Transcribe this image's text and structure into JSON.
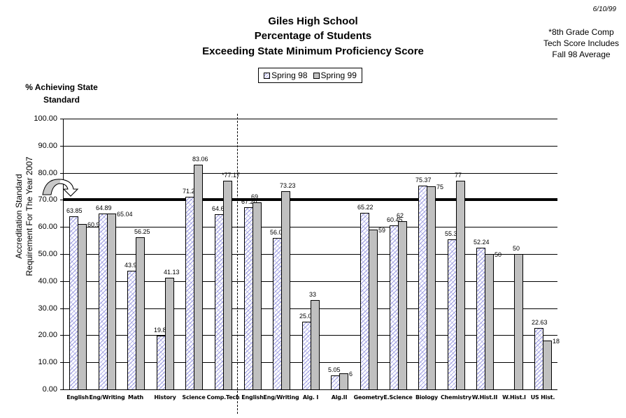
{
  "header": {
    "title_line1": "Giles High School",
    "title_line2": "Percentage of Students",
    "title_line3": "Exceeding State Minimum Proficiency Score",
    "date": "6/10/99",
    "note_line1": "*8th Grade Comp",
    "note_line2": "Tech Score Includes",
    "note_line3": "Fall 98 Average"
  },
  "legend": {
    "series1": "Spring 98",
    "series2": "Spring 99"
  },
  "axis": {
    "ylabel_line1": "% Achieving State",
    "ylabel_line2": "Standard",
    "annotation_line1": "Accreditation Standard",
    "annotation_line2": "Requirement For The Year 2007",
    "ticks": [
      "100.00",
      "90.00",
      "80.00",
      "70.00",
      "60.00",
      "50.00",
      "40.00",
      "30.00",
      "20.00",
      "10.00",
      "0.00"
    ]
  },
  "colors": {
    "spring98_fill": "#ffffff",
    "spring98_hatch": "#9a9ae0",
    "spring99_fill": "#c0c0c0",
    "target_line": "#000000"
  },
  "chart_data": {
    "type": "bar",
    "title": "Giles High School Percentage of Students Exceeding State Minimum Proficiency Score",
    "xlabel": "",
    "ylabel": "% Achieving State Standard",
    "ylim": [
      0,
      100
    ],
    "grid": true,
    "legend_position": "top",
    "reference_line": {
      "value": 70,
      "label": "Accreditation Standard Requirement For The Year 2007"
    },
    "categories": [
      "English",
      "Eng/Writing",
      "Math",
      "History",
      "Science",
      "Comp.Tech",
      "English",
      "Eng/Writing",
      "Alg. I",
      "Alg.II",
      "Geometry",
      "E.Science",
      "Biology",
      "Chemistry",
      "W.Hist.II",
      "W.Hist.I",
      "US Hist."
    ],
    "series": [
      {
        "name": "Spring 98",
        "values": [
          63.85,
          64.89,
          43.94,
          19.85,
          71.21,
          64.62,
          67.2,
          56.0,
          25.0,
          5.05,
          65.22,
          60.45,
          75.37,
          55.36,
          52.24,
          null,
          22.63
        ]
      },
      {
        "name": "Spring 99",
        "values": [
          60.98,
          65.04,
          56.25,
          41.13,
          83.06,
          77.17,
          69,
          73.23,
          33,
          6,
          59,
          62,
          75,
          77,
          50,
          50,
          18
        ]
      }
    ],
    "labels98": [
      "63.85",
      "64.89",
      "43.94",
      "19.85",
      "71.21",
      "64.62",
      "67.20",
      "56.00",
      "25.00",
      "5.05",
      "65.22",
      "60.45",
      "75.37",
      "55.36",
      "52.24",
      "",
      "22.63"
    ],
    "labels99": [
      "60.98",
      "65.04",
      "56.25",
      "41.13",
      "83.06",
      "*77.17",
      "69",
      "73.23",
      "33",
      "6",
      "59",
      "62",
      "75",
      "77",
      "50",
      "50",
      "18"
    ],
    "annotations": [
      "Dashed divider separates 8th grade subjects (left) from high school subjects (right)"
    ]
  }
}
